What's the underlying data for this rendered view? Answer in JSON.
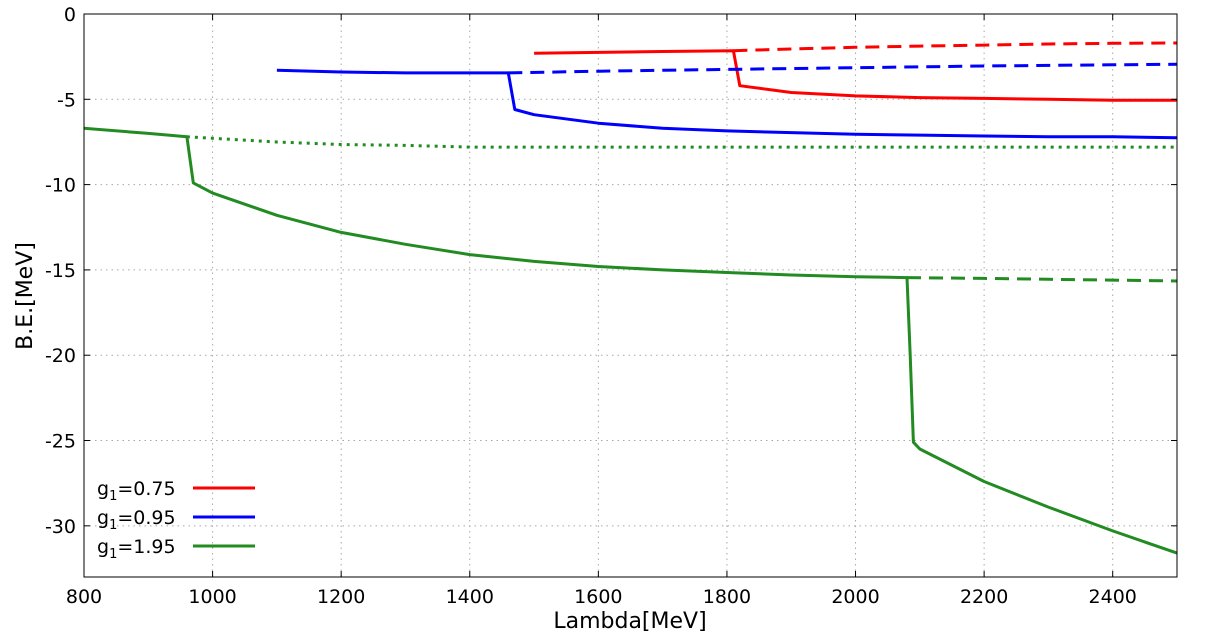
{
  "chart_data": {
    "type": "line",
    "title": "",
    "xlabel": "Lambda[MeV]",
    "ylabel": "B.E.[MeV]",
    "xlim": [
      800,
      2500
    ],
    "ylim": [
      -33,
      0
    ],
    "x_ticks": [
      800,
      1000,
      1200,
      1400,
      1600,
      1800,
      2000,
      2200,
      2400
    ],
    "y_ticks": [
      0,
      -5,
      -10,
      -15,
      -20,
      -25,
      -30
    ],
    "grid": true,
    "legend_position": "bottom-left",
    "legend": [
      {
        "prefix": "g",
        "sub": "1",
        "suffix": "=0.75",
        "color": "#ff0000"
      },
      {
        "prefix": "g",
        "sub": "1",
        "suffix": "=0.95",
        "color": "#0000ff"
      },
      {
        "prefix": "g",
        "sub": "1",
        "suffix": "=1.95",
        "color": "#228b22"
      }
    ],
    "series": [
      {
        "color": "#ff0000",
        "style": "solid",
        "x": [
          1500,
          1600,
          1700,
          1810,
          1820,
          1900,
          2000,
          2100,
          2200,
          2300,
          2400,
          2500
        ],
        "y": [
          -2.3,
          -2.25,
          -2.2,
          -2.15,
          -4.2,
          -4.6,
          -4.8,
          -4.9,
          -4.95,
          -5.0,
          -5.05,
          -5.05
        ]
      },
      {
        "color": "#ff0000",
        "style": "dashed",
        "x": [
          1810,
          1900,
          2000,
          2100,
          2200,
          2300,
          2400,
          2500
        ],
        "y": [
          -2.15,
          -2.05,
          -1.95,
          -1.88,
          -1.82,
          -1.76,
          -1.72,
          -1.7
        ]
      },
      {
        "color": "#0000ff",
        "style": "solid",
        "x": [
          1100,
          1200,
          1300,
          1400,
          1460,
          1470,
          1500,
          1600,
          1700,
          1800,
          1900,
          2000,
          2100,
          2200,
          2300,
          2400,
          2500
        ],
        "y": [
          -3.3,
          -3.4,
          -3.45,
          -3.45,
          -3.45,
          -5.6,
          -5.9,
          -6.4,
          -6.7,
          -6.85,
          -6.95,
          -7.05,
          -7.1,
          -7.15,
          -7.2,
          -7.2,
          -7.25
        ]
      },
      {
        "color": "#0000ff",
        "style": "dashed",
        "x": [
          1460,
          1600,
          1800,
          2000,
          2200,
          2400,
          2500
        ],
        "y": [
          -3.45,
          -3.35,
          -3.25,
          -3.15,
          -3.05,
          -2.98,
          -2.95
        ]
      },
      {
        "color": "#228b22",
        "style": "solid",
        "x": [
          800,
          900,
          960,
          970,
          1000,
          1100,
          1200,
          1300,
          1400,
          1500,
          1600,
          1700,
          1800,
          1900,
          2000,
          2080,
          2085,
          2090,
          2100,
          2200,
          2300,
          2400,
          2500
        ],
        "y": [
          -6.7,
          -7.0,
          -7.2,
          -9.9,
          -10.5,
          -11.8,
          -12.8,
          -13.5,
          -14.1,
          -14.5,
          -14.8,
          -15.0,
          -15.15,
          -15.3,
          -15.4,
          -15.45,
          -20.0,
          -25.1,
          -25.5,
          -27.4,
          -28.9,
          -30.3,
          -31.6
        ]
      },
      {
        "color": "#228b22",
        "style": "dotted",
        "x": [
          960,
          1100,
          1200,
          1300,
          1400,
          1600,
          1800,
          2000,
          2200,
          2500
        ],
        "y": [
          -7.2,
          -7.5,
          -7.65,
          -7.7,
          -7.8,
          -7.8,
          -7.8,
          -7.8,
          -7.8,
          -7.8
        ]
      },
      {
        "color": "#228b22",
        "style": "dashed",
        "x": [
          2080,
          2200,
          2300,
          2400,
          2500
        ],
        "y": [
          -15.45,
          -15.5,
          -15.55,
          -15.6,
          -15.65
        ]
      }
    ]
  }
}
